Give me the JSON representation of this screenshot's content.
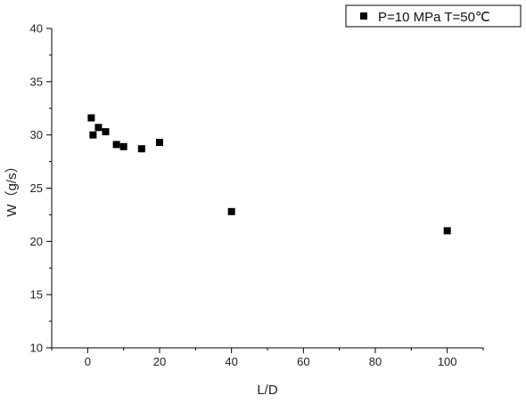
{
  "chart_data": {
    "type": "scatter",
    "xlabel": "L/D",
    "ylabel": "W（g/s）",
    "xlim": [
      -10,
      110
    ],
    "ylim": [
      10,
      40
    ],
    "x_ticks": [
      "0",
      "20",
      "40",
      "60",
      "80",
      "100"
    ],
    "y_ticks": [
      "10",
      "15",
      "20",
      "25",
      "30",
      "35",
      "40"
    ],
    "grid": false,
    "legend_position": "top-right",
    "series": [
      {
        "name": "P=10 MPa T=50℃",
        "marker": "square",
        "color": "#000000",
        "points": [
          {
            "x": 1,
            "y": 31.6
          },
          {
            "x": 1.5,
            "y": 30.0
          },
          {
            "x": 3,
            "y": 30.7
          },
          {
            "x": 5,
            "y": 30.3
          },
          {
            "x": 8,
            "y": 29.1
          },
          {
            "x": 10,
            "y": 28.9
          },
          {
            "x": 15,
            "y": 28.7
          },
          {
            "x": 20,
            "y": 29.3
          },
          {
            "x": 40,
            "y": 22.8
          },
          {
            "x": 100,
            "y": 21.0
          }
        ]
      }
    ]
  }
}
